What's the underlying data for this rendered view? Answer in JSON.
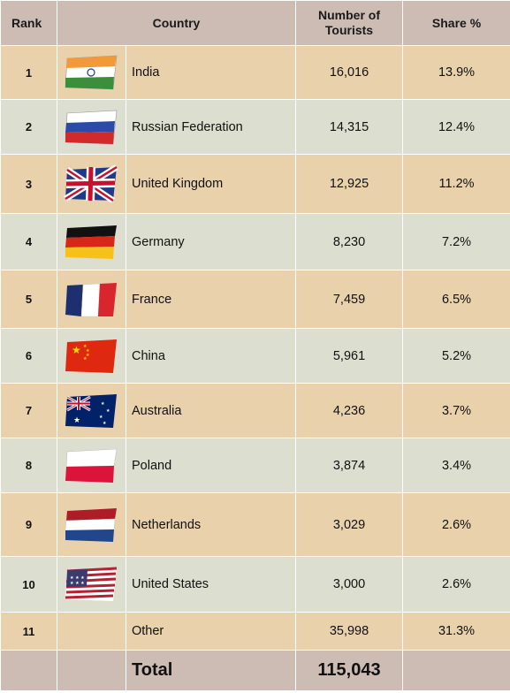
{
  "headers": {
    "rank": "Rank",
    "country": "Country",
    "tourists_line1": "Number of",
    "tourists_line2": "Tourists",
    "share": "Share %"
  },
  "rows": [
    {
      "rank": "1",
      "country": "India",
      "flag_icon": "india-flag-icon",
      "tourists": "16,016",
      "share": "13.9%"
    },
    {
      "rank": "2",
      "country": "Russian Federation",
      "flag_icon": "russia-flag-icon",
      "tourists": "14,315",
      "share": "12.4%"
    },
    {
      "rank": "3",
      "country": "United Kingdom",
      "flag_icon": "uk-flag-icon",
      "tourists": "12,925",
      "share": "11.2%"
    },
    {
      "rank": "4",
      "country": "Germany",
      "flag_icon": "germany-flag-icon",
      "tourists": "8,230",
      "share": "7.2%"
    },
    {
      "rank": "5",
      "country": "France",
      "flag_icon": "france-flag-icon",
      "tourists": "7,459",
      "share": "6.5%"
    },
    {
      "rank": "6",
      "country": "China",
      "flag_icon": "china-flag-icon",
      "tourists": "5,961",
      "share": "5.2%"
    },
    {
      "rank": "7",
      "country": "Australia",
      "flag_icon": "australia-flag-icon",
      "tourists": "4,236",
      "share": "3.7%"
    },
    {
      "rank": "8",
      "country": "Poland",
      "flag_icon": "poland-flag-icon",
      "tourists": "3,874",
      "share": "3.4%"
    },
    {
      "rank": "9",
      "country": "Netherlands",
      "flag_icon": "netherlands-flag-icon",
      "tourists": "3,029",
      "share": "2.6%"
    },
    {
      "rank": "10",
      "country": "United States",
      "flag_icon": "usa-flag-icon",
      "tourists": "3,000",
      "share": "2.6%"
    },
    {
      "rank": "11",
      "country": "Other",
      "tourists": "35,998",
      "share": "31.3%"
    }
  ],
  "total": {
    "label": "Total",
    "tourists": "115,043"
  },
  "colors": {
    "header_bg": "#cdbcb4",
    "odd_row_bg": "#e9d1ac",
    "even_row_bg": "#dcdfcf",
    "total_bg": "#cdbcb4"
  }
}
